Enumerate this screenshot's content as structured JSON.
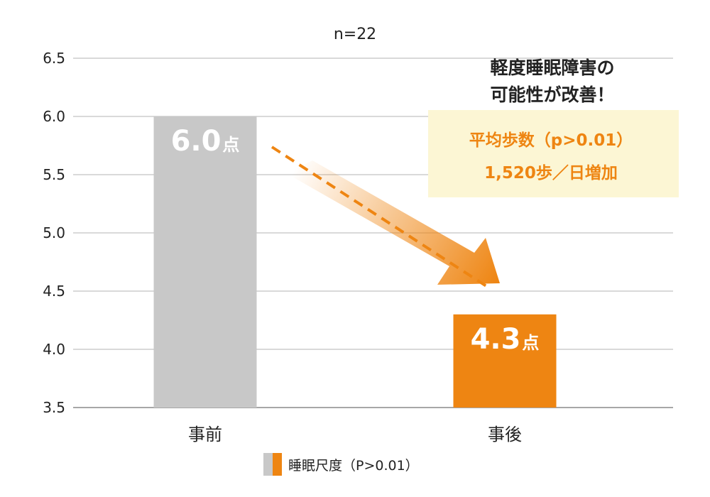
{
  "chart_data": {
    "type": "bar",
    "subtitle": "n=22",
    "categories": [
      "事前",
      "事後"
    ],
    "series": [
      {
        "name": "睡眠尺度（P>0.01）",
        "values": [
          6.0,
          4.3
        ]
      }
    ],
    "value_labels": [
      {
        "number": "6.0",
        "unit": "点"
      },
      {
        "number": "4.3",
        "unit": "点"
      }
    ],
    "ylim": [
      3.5,
      6.5
    ],
    "yticks": [
      "3.5",
      "4.0",
      "4.5",
      "5.0",
      "5.5",
      "6.0",
      "6.5"
    ],
    "grid": true,
    "bar_colors": [
      "#c8c8c8",
      "#ee8512"
    ],
    "legend": {
      "label": "睡眠尺度（P>0.01）",
      "placement": "bottom-center"
    },
    "annotations": {
      "improvement_lines": [
        "軽度睡眠障害の",
        "可能性が改善！"
      ],
      "box_lines": [
        "平均歩数（p>0.01）",
        "1,520歩／日増加"
      ],
      "box_color": "#fcf6d4",
      "arrow_color": "#ee8512"
    }
  }
}
